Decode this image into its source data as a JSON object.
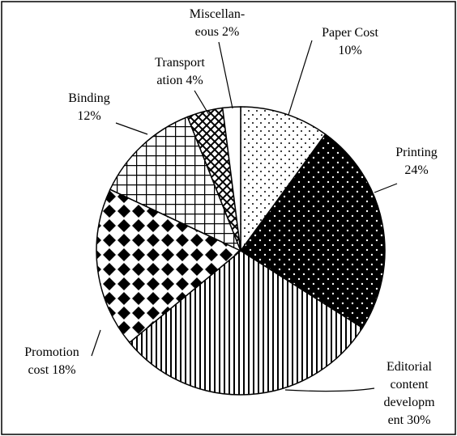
{
  "chart_data": {
    "type": "pie",
    "categories": [
      "Paper Cost",
      "Printing",
      "Editorial\ncontent\ndevelopm\nent",
      "Promotion\ncost",
      "Binding",
      "Transport\nation",
      "Miscellan-\neous"
    ],
    "values": [
      10,
      24,
      30,
      18,
      12,
      4,
      2
    ],
    "value_labels": [
      "10%",
      "24%",
      "30%",
      "18%",
      "12%",
      "4%",
      "2%"
    ]
  }
}
